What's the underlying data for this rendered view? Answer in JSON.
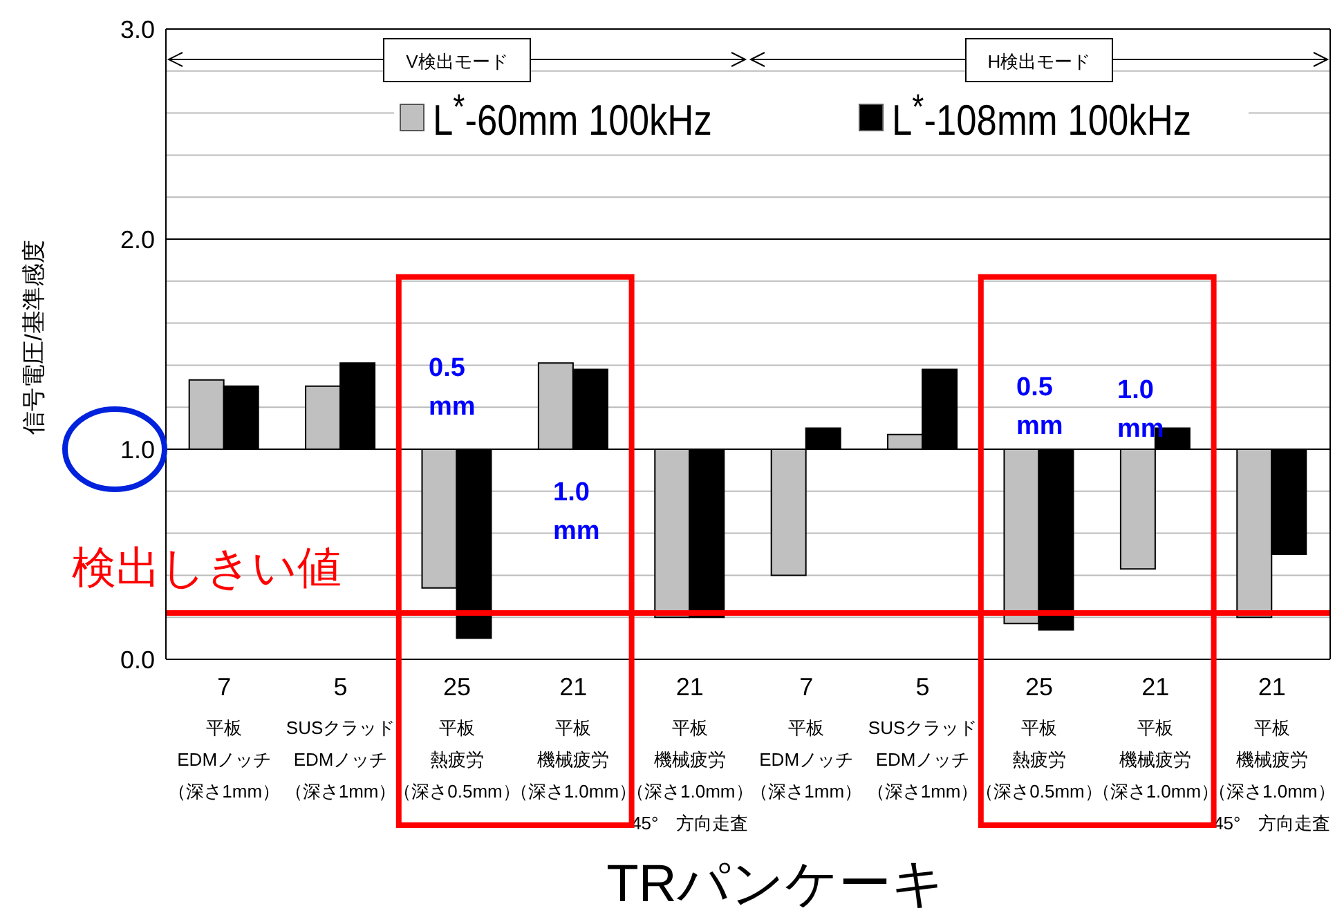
{
  "chart_data": {
    "type": "bar",
    "xlabel": "TRパンケーキ",
    "ylabel": "信号電圧/基準感度",
    "categories": [
      "7平板EDMノッチ（深さ1mm）",
      "5SUSクラッドEDMノッチ（深さ1mm）",
      "25平板熱疲労（深さ0.5mm）",
      "21平板機械疲労（深さ1.0mm）",
      "21平板機械疲労（深さ1.0mm）45°　方向走査",
      "7平板EDMノッチ（深さ1mm）",
      "5SUSクラッドEDMノッチ（深さ1mm）",
      "25平板熱疲労（深さ0.5mm）",
      "21平板機械疲労（深さ1.0mm）",
      "21平板機械疲労（深さ1.0mm）45°　方向走査"
    ],
    "series": [
      {
        "name": "L$^{*}$-60mm 100kHz",
        "color": "#c0c0c0",
        "base": [
          1,
          1,
          1,
          1,
          1,
          1,
          1,
          1,
          1,
          1
        ],
        "values": [
          0.33,
          0.3,
          -0.66,
          0.41,
          -0.8,
          -0.6,
          0.07,
          -0.83,
          -0.57,
          -0.8
        ]
      },
      {
        "name": "L$^{*}$-108mm 100kHz",
        "color": "#000000",
        "base": [
          1,
          1,
          1,
          1,
          1,
          1,
          1,
          1,
          1,
          1
        ],
        "values": [
          0.3,
          0.41,
          -0.9,
          0.38,
          -0.8,
          0.1,
          0.38,
          -0.86,
          0.1,
          -0.5
        ]
      }
    ],
    "ylim": [
      0,
      3
    ],
    "yticks": [
      {
        "value": 0,
        "label": "0.0"
      },
      {
        "value": 0.2,
        "label": null
      },
      {
        "value": 0.4,
        "label": null
      },
      {
        "value": 0.6,
        "label": null
      },
      {
        "value": 0.8,
        "label": null
      },
      {
        "value": 1,
        "label": "1.0"
      },
      {
        "value": 1.2,
        "label": null
      },
      {
        "value": 1.4,
        "label": null
      },
      {
        "value": 1.6,
        "label": null
      },
      {
        "value": 1.8,
        "label": null
      },
      {
        "value": 2,
        "label": "2.0"
      },
      {
        "value": 2.2,
        "label": null
      },
      {
        "value": 2.4,
        "label": null
      },
      {
        "value": 2.6,
        "label": null
      },
      {
        "value": 2.8,
        "label": null
      },
      {
        "value": 3,
        "label": "3.0"
      }
    ],
    "ref_lines": [
      {
        "axis": "y",
        "value": 0.22,
        "label": "検出しきい値",
        "color": "#ff0000"
      }
    ],
    "annotations": [
      "V検出モード",
      "H検出モード",
      "0.5\nmm",
      "1.0\nmm",
      "0.5\nmm",
      "1.0\nmm"
    ],
    "grid": "y",
    "legend": "top"
  }
}
